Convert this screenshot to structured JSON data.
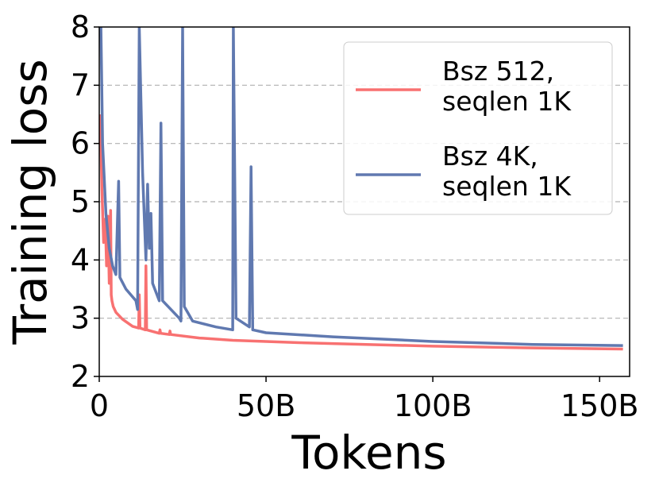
{
  "chart_data": {
    "type": "line",
    "x_label": "Tokens",
    "y_label": "Training loss",
    "xlim": [
      0,
      159
    ],
    "ylim": [
      2,
      8
    ],
    "xticks": [
      0,
      {
        "value": 50,
        "label": "50B"
      },
      {
        "value": 100,
        "label": "100B"
      },
      {
        "value": 150,
        "label": "150B"
      }
    ],
    "yticks": [
      2,
      3,
      4,
      5,
      6,
      7,
      8
    ],
    "grid": true,
    "legend": "upper right",
    "series": [
      {
        "name": "Bsz 512, seqlen 1K",
        "color": "#f87171",
        "x": [
          0.3,
          0.8,
          1.3,
          1.8,
          2.2,
          2.6,
          3.0,
          3.4,
          3.6,
          3.8,
          4.2,
          5,
          7,
          10,
          11.8,
          12,
          12.2,
          13.8,
          14,
          14.2,
          18,
          18.2,
          18.4,
          21,
          21.2,
          21.4,
          30,
          40,
          60,
          80,
          100,
          130,
          157
        ],
        "values": [
          6.5,
          5.2,
          4.3,
          4.7,
          3.9,
          4.75,
          3.6,
          4.85,
          3.4,
          3.3,
          3.2,
          3.1,
          2.98,
          2.86,
          2.83,
          3.4,
          2.83,
          2.8,
          3.9,
          2.8,
          2.74,
          2.8,
          2.74,
          2.72,
          2.78,
          2.72,
          2.66,
          2.62,
          2.58,
          2.55,
          2.52,
          2.49,
          2.47
        ]
      },
      {
        "name": "Bsz 4K, seqlen 1K",
        "color": "#6079b0",
        "x": [
          0.5,
          1,
          2,
          3,
          4,
          5,
          5.8,
          6.2,
          8,
          11,
          11.5,
          12,
          13,
          14,
          14.5,
          15,
          15.5,
          16,
          18,
          18.5,
          19,
          24,
          24.5,
          25,
          25.5,
          28,
          35,
          40,
          40.2,
          41,
          45,
          45.5,
          46,
          50,
          70,
          100,
          130,
          157
        ],
        "values": [
          8,
          6,
          4.8,
          4.2,
          3.9,
          3.75,
          5.35,
          3.7,
          3.5,
          3.3,
          3.15,
          8,
          5.5,
          4,
          5.3,
          4.2,
          4.8,
          3.6,
          3.3,
          6.35,
          3.3,
          3.0,
          2.95,
          8,
          3.2,
          2.95,
          2.85,
          2.8,
          8,
          3.0,
          2.85,
          5.6,
          2.8,
          2.75,
          2.68,
          2.6,
          2.55,
          2.53
        ]
      }
    ]
  }
}
